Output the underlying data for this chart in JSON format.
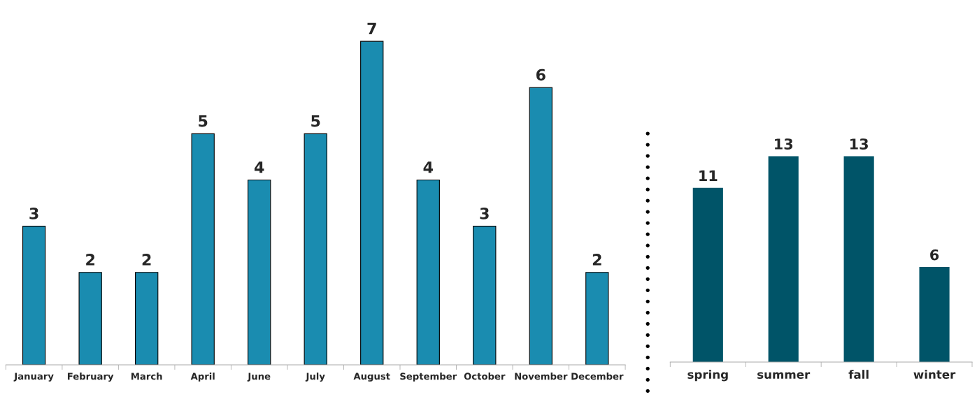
{
  "chart_data": [
    {
      "type": "bar",
      "categories": [
        "January",
        "February",
        "March",
        "April",
        "June",
        "July",
        "August",
        "September",
        "October",
        "November",
        "December"
      ],
      "values": [
        3,
        2,
        2,
        5,
        4,
        5,
        7,
        4,
        3,
        6,
        2
      ],
      "color": "#1a8cb0",
      "data_labels": true,
      "tick_labels": "x",
      "grid": false
    },
    {
      "type": "bar",
      "categories": [
        "spring",
        "summer",
        "fall",
        "winter"
      ],
      "values": [
        11,
        13,
        13,
        6
      ],
      "color": "#005468",
      "data_labels": true,
      "tick_labels": "x",
      "grid": false
    }
  ]
}
